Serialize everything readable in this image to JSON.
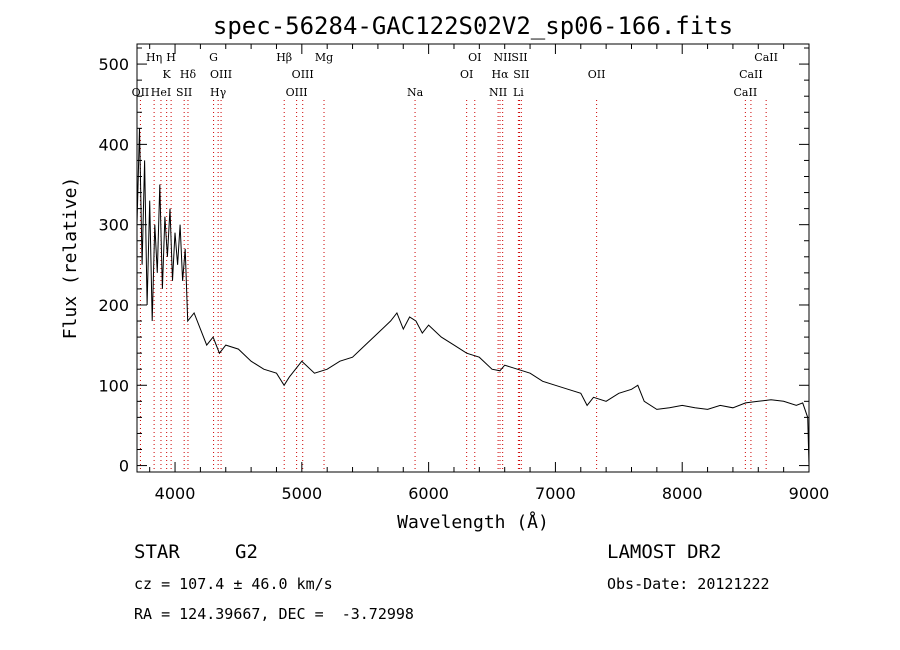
{
  "chart_data": {
    "type": "line",
    "title": "spec-56284-GAC122S02V2_sp06-166.fits",
    "xlabel": "Wavelength (Å)",
    "ylabel": "Flux (relative)",
    "xlim": [
      3700,
      9000
    ],
    "ylim": [
      -8,
      525
    ],
    "xticks": [
      4000,
      5000,
      6000,
      7000,
      8000,
      9000
    ],
    "yticks": [
      0,
      100,
      200,
      300,
      400,
      500
    ],
    "grid": false,
    "series": [
      {
        "x": [
          3700,
          3720,
          3740,
          3760,
          3780,
          3800,
          3820,
          3840,
          3860,
          3880,
          3900,
          3920,
          3940,
          3960,
          3980,
          4000,
          4020,
          4040,
          4060,
          4080,
          4100,
          4150,
          4200,
          4250,
          4300,
          4350,
          4400,
          4500,
          4600,
          4700,
          4800,
          4860,
          4900,
          5000,
          5100,
          5200,
          5300,
          5400,
          5500,
          5600,
          5700,
          5750,
          5800,
          5850,
          5900,
          5950,
          6000,
          6100,
          6200,
          6300,
          6400,
          6500,
          6562,
          6600,
          6700,
          6800,
          6900,
          7000,
          7100,
          7200,
          7250,
          7300,
          7400,
          7500,
          7600,
          7650,
          7700,
          7800,
          7900,
          8000,
          8100,
          8200,
          8300,
          8400,
          8500,
          8600,
          8700,
          8800,
          8900,
          8950,
          8990,
          9000
        ],
        "y": [
          300,
          420,
          250,
          380,
          200,
          330,
          180,
          300,
          240,
          350,
          220,
          310,
          260,
          320,
          230,
          290,
          250,
          300,
          230,
          270,
          180,
          190,
          170,
          150,
          160,
          140,
          150,
          145,
          130,
          120,
          115,
          100,
          110,
          130,
          115,
          120,
          130,
          135,
          150,
          165,
          180,
          190,
          170,
          185,
          180,
          165,
          175,
          160,
          150,
          140,
          135,
          120,
          118,
          125,
          120,
          115,
          105,
          100,
          95,
          90,
          75,
          85,
          80,
          90,
          95,
          100,
          80,
          70,
          72,
          75,
          72,
          70,
          75,
          72,
          78,
          80,
          82,
          80,
          75,
          78,
          60,
          0
        ]
      }
    ],
    "spectral_lines": [
      {
        "name": "OII",
        "x": 3727,
        "row": 2
      },
      {
        "name": "Hη",
        "x": 3835,
        "row": 0
      },
      {
        "name": "HeI",
        "x": 3889,
        "row": 2
      },
      {
        "name": "K",
        "x": 3934,
        "row": 1
      },
      {
        "name": "H",
        "x": 3969,
        "row": 0
      },
      {
        "name": "SII",
        "x": 4072,
        "row": 2
      },
      {
        "name": "Hδ",
        "x": 4102,
        "row": 1
      },
      {
        "name": "G",
        "x": 4304,
        "row": 0
      },
      {
        "name": "Hγ",
        "x": 4340,
        "row": 2
      },
      {
        "name": "OIII",
        "x": 4363,
        "row": 1
      },
      {
        "name": "Hβ",
        "x": 4861,
        "row": 0
      },
      {
        "name": "OIII",
        "x": 4959,
        "row": 2
      },
      {
        "name": "OIII",
        "x": 5007,
        "row": 1
      },
      {
        "name": "Mg",
        "x": 5175,
        "row": 0
      },
      {
        "name": "Na",
        "x": 5893,
        "row": 2
      },
      {
        "name": "OI",
        "x": 6300,
        "row": 1
      },
      {
        "name": "OI",
        "x": 6364,
        "row": 0
      },
      {
        "name": "NII",
        "x": 6548,
        "row": 2
      },
      {
        "name": "Hα",
        "x": 6563,
        "row": 1
      },
      {
        "name": "NII",
        "x": 6584,
        "row": 0
      },
      {
        "name": "SII",
        "x": 6717,
        "row": 0
      },
      {
        "name": "SII",
        "x": 6731,
        "row": 1
      },
      {
        "name": "Li",
        "x": 6708,
        "row": 2
      },
      {
        "name": "OII",
        "x": 7325,
        "row": 1
      },
      {
        "name": "CaII",
        "x": 8498,
        "row": 2
      },
      {
        "name": "CaII",
        "x": 8542,
        "row": 1
      },
      {
        "name": "CaII",
        "x": 8662,
        "row": 0
      }
    ]
  },
  "info": {
    "object_class": "STAR",
    "subclass": "G2",
    "survey": "LAMOST DR2",
    "redshift": "cz = 107.4 ± 46.0 km/s",
    "obs_date": "Obs-Date: 20121222",
    "coords": "RA = 124.39667, DEC =  -3.72998"
  },
  "colors": {
    "line": "#000000",
    "marker": "#cc0000"
  }
}
